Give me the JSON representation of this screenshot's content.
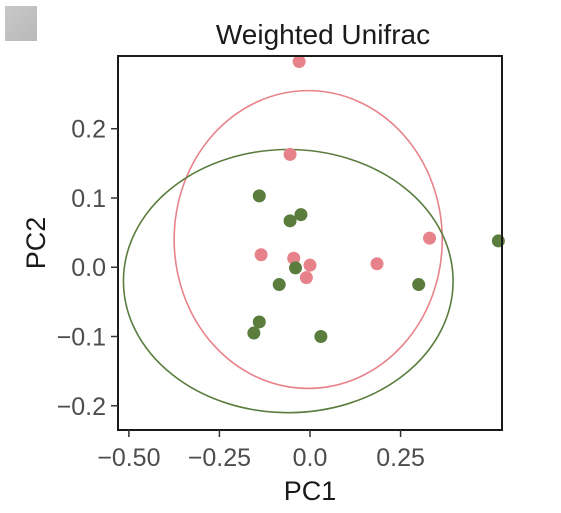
{
  "chart_data": {
    "type": "scatter",
    "title": "Weighted Unifrac",
    "xlabel": "PC1",
    "ylabel": "PC2",
    "xlim": [
      -0.53,
      0.53
    ],
    "ylim": [
      -0.235,
      0.305
    ],
    "x_ticks": [
      -0.5,
      -0.25,
      0.0,
      0.25
    ],
    "x_tick_labels": [
      "−0.50",
      "−0.25",
      "0.0",
      "0.25"
    ],
    "y_ticks": [
      -0.2,
      -0.1,
      0.0,
      0.1,
      0.2
    ],
    "y_tick_labels": [
      "−0.2",
      "−0.1",
      "0.0",
      "0.1",
      "0.2"
    ],
    "grid": false,
    "legend": "none",
    "series": [
      {
        "color": "#e8828a",
        "points": [
          {
            "x": -0.03,
            "y": 0.297
          },
          {
            "x": -0.055,
            "y": 0.163
          },
          {
            "x": -0.135,
            "y": 0.018
          },
          {
            "x": -0.045,
            "y": 0.013
          },
          {
            "x": 0.0,
            "y": 0.003
          },
          {
            "x": -0.01,
            "y": -0.015
          },
          {
            "x": 0.185,
            "y": 0.005
          },
          {
            "x": 0.33,
            "y": 0.042
          }
        ],
        "ellipse": {
          "cx": -0.005,
          "cy": 0.04,
          "rx": 0.37,
          "ry": 0.215
        }
      },
      {
        "color": "#5a7d3e",
        "points": [
          {
            "x": -0.14,
            "y": 0.103
          },
          {
            "x": -0.025,
            "y": 0.076
          },
          {
            "x": -0.055,
            "y": 0.067
          },
          {
            "x": -0.04,
            "y": -0.001
          },
          {
            "x": -0.085,
            "y": -0.025
          },
          {
            "x": -0.14,
            "y": -0.079
          },
          {
            "x": -0.155,
            "y": -0.095
          },
          {
            "x": 0.03,
            "y": -0.1
          },
          {
            "x": 0.3,
            "y": -0.025
          },
          {
            "x": 0.52,
            "y": 0.038
          }
        ],
        "ellipse": {
          "cx": -0.06,
          "cy": -0.02,
          "rx": 0.455,
          "ry": 0.19
        }
      }
    ]
  }
}
